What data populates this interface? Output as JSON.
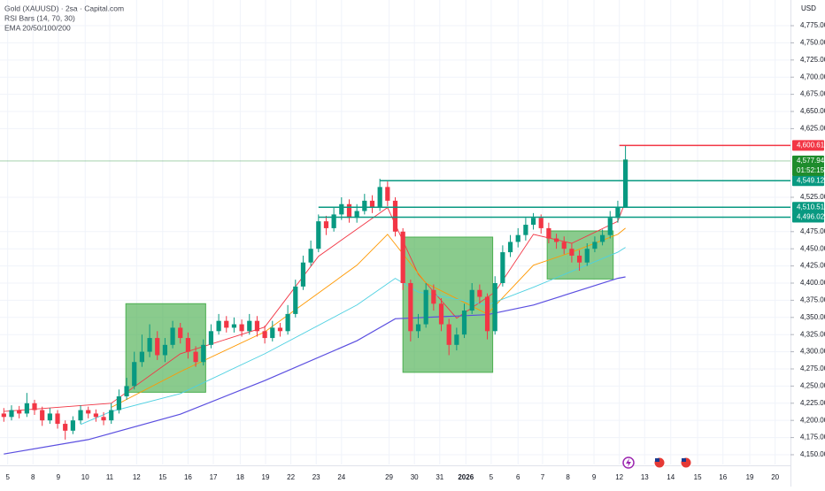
{
  "chart_data": {
    "type": "candlestick",
    "title": "Gold (XAUUSD) · 2sa · Capital.com",
    "indicators": [
      "RSI Bars (14, 70, 30)",
      "EMA 20/50/100/200"
    ],
    "currency": "USD",
    "up_color": "#089981",
    "down_color": "#f23645",
    "grid": true,
    "xlim": [
      -0.5,
      102.5
    ],
    "ylim": [
      4135.8,
      4812.4
    ],
    "xticks": [
      {
        "value": 0.5,
        "label": "5"
      },
      {
        "value": 3.8,
        "label": "8"
      },
      {
        "value": 7.1,
        "label": "9"
      },
      {
        "value": 10.6,
        "label": "10"
      },
      {
        "value": 13.8,
        "label": "11"
      },
      {
        "value": 17.3,
        "label": "12"
      },
      {
        "value": 20.7,
        "label": "15"
      },
      {
        "value": 24,
        "label": "16"
      },
      {
        "value": 27.3,
        "label": "17"
      },
      {
        "value": 30.8,
        "label": "18"
      },
      {
        "value": 34.1,
        "label": "19"
      },
      {
        "value": 37.4,
        "label": "22"
      },
      {
        "value": 40.7,
        "label": "23"
      },
      {
        "value": 44,
        "label": "24"
      },
      {
        "value": 50.2,
        "label": "29"
      },
      {
        "value": 53.5,
        "label": "30"
      },
      {
        "value": 56.8,
        "label": "31"
      },
      {
        "value": 60.2,
        "label": "2026"
      },
      {
        "value": 63.5,
        "label": "5"
      },
      {
        "value": 67,
        "label": "6"
      },
      {
        "value": 70.2,
        "label": "7"
      },
      {
        "value": 73.5,
        "label": "8"
      },
      {
        "value": 76.9,
        "label": "9"
      },
      {
        "value": 80.2,
        "label": "12"
      },
      {
        "value": 83.5,
        "label": "13"
      },
      {
        "value": 86.9,
        "label": "14"
      },
      {
        "value": 90.4,
        "label": "15"
      },
      {
        "value": 93.7,
        "label": "16"
      },
      {
        "value": 97.2,
        "label": "19"
      },
      {
        "value": 100.5,
        "label": "20"
      }
    ],
    "yticks": [
      {
        "value": 4775,
        "label": "4,775.00"
      },
      {
        "value": 4750,
        "label": "4,750.00"
      },
      {
        "value": 4725,
        "label": "4,725.00"
      },
      {
        "value": 4700,
        "label": "4,700.00"
      },
      {
        "value": 4675,
        "label": "4,675.00"
      },
      {
        "value": 4650,
        "label": "4,650.00"
      },
      {
        "value": 4625,
        "label": "4,625.00"
      },
      {
        "value": 4525,
        "label": "4,525.00"
      },
      {
        "value": 4475,
        "label": "4,475.00"
      },
      {
        "value": 4450,
        "label": "4,450.00"
      },
      {
        "value": 4425,
        "label": "4,425.00"
      },
      {
        "value": 4400,
        "label": "4,400.00"
      },
      {
        "value": 4375,
        "label": "4,375.00"
      },
      {
        "value": 4350,
        "label": "4,350.00"
      },
      {
        "value": 4325,
        "label": "4,325.00"
      },
      {
        "value": 4300,
        "label": "4,300.00"
      },
      {
        "value": 4275,
        "label": "4,275.00"
      },
      {
        "value": 4250,
        "label": "4,250.00"
      },
      {
        "value": 4225,
        "label": "4,225.00"
      },
      {
        "value": 4200,
        "label": "4,200.00"
      },
      {
        "value": 4175,
        "label": "4,175.00"
      },
      {
        "value": 4150,
        "label": "4,150.00"
      }
    ],
    "candles": {
      "open": [
        4210,
        4205,
        4215,
        4210,
        4225,
        4215,
        4200,
        4210,
        4195,
        4185,
        4200,
        4215,
        4210,
        4205,
        4200,
        4215,
        4235,
        4250,
        4285,
        4300,
        4320,
        4295,
        4310,
        4335,
        4320,
        4300,
        4285,
        4310,
        4330,
        4345,
        4335,
        4340,
        4330,
        4345,
        4330,
        4320,
        4335,
        4330,
        4355,
        4395,
        4430,
        4450,
        4490,
        4480,
        4500,
        4515,
        4495,
        4505,
        4520,
        4510,
        4540,
        4520,
        4475,
        4400,
        4330,
        4340,
        4390,
        4370,
        4340,
        4310,
        4325,
        4360,
        4390,
        4380,
        4330,
        4400,
        4445,
        4460,
        4470,
        4485,
        4495,
        4480,
        4465,
        4460,
        4450,
        4440,
        4430,
        4450,
        4460,
        4470,
        4495,
        4510
      ],
      "high": [
        4218,
        4222,
        4221,
        4240,
        4230,
        4220,
        4218,
        4215,
        4200,
        4206,
        4222,
        4220,
        4216,
        4212,
        4225,
        4245,
        4262,
        4300,
        4325,
        4340,
        4330,
        4320,
        4345,
        4342,
        4328,
        4308,
        4318,
        4340,
        4355,
        4352,
        4350,
        4347,
        4355,
        4352,
        4338,
        4345,
        4342,
        4368,
        4405,
        4440,
        4462,
        4500,
        4498,
        4510,
        4525,
        4522,
        4515,
        4530,
        4528,
        4552,
        4548,
        4525,
        4480,
        4405,
        4355,
        4400,
        4398,
        4378,
        4348,
        4335,
        4370,
        4400,
        4398,
        4385,
        4410,
        4455,
        4470,
        4480,
        4495,
        4502,
        4500,
        4488,
        4472,
        4468,
        4458,
        4448,
        4458,
        4468,
        4478,
        4505,
        4520,
        4600
      ],
      "low": [
        4198,
        4200,
        4203,
        4205,
        4208,
        4192,
        4195,
        4188,
        4172,
        4180,
        4195,
        4203,
        4198,
        4193,
        4195,
        4210,
        4230,
        4245,
        4278,
        4292,
        4288,
        4285,
        4305,
        4312,
        4290,
        4278,
        4280,
        4305,
        4325,
        4328,
        4328,
        4322,
        4325,
        4322,
        4312,
        4315,
        4322,
        4325,
        4350,
        4390,
        4425,
        4445,
        4470,
        4475,
        4492,
        4488,
        4488,
        4500,
        4502,
        4505,
        4512,
        4468,
        4390,
        4315,
        4320,
        4335,
        4360,
        4330,
        4295,
        4302,
        4320,
        4355,
        4370,
        4318,
        4325,
        4395,
        4438,
        4452,
        4462,
        4478,
        4472,
        4458,
        4450,
        4442,
        4430,
        4418,
        4425,
        4445,
        4455,
        4465,
        4488,
        4530
      ],
      "close": [
        4205,
        4215,
        4210,
        4225,
        4215,
        4200,
        4210,
        4195,
        4185,
        4200,
        4215,
        4210,
        4205,
        4200,
        4215,
        4235,
        4250,
        4285,
        4300,
        4320,
        4295,
        4310,
        4335,
        4320,
        4300,
        4285,
        4310,
        4330,
        4345,
        4335,
        4340,
        4330,
        4345,
        4330,
        4320,
        4335,
        4330,
        4355,
        4395,
        4430,
        4450,
        4490,
        4480,
        4500,
        4515,
        4495,
        4505,
        4520,
        4510,
        4540,
        4520,
        4475,
        4400,
        4330,
        4340,
        4390,
        4370,
        4340,
        4310,
        4325,
        4360,
        4390,
        4380,
        4330,
        4400,
        4445,
        4460,
        4470,
        4485,
        4495,
        4480,
        4465,
        4460,
        4450,
        4440,
        4430,
        4450,
        4460,
        4470,
        4495,
        4510,
        4580
      ]
    },
    "series": [
      {
        "color": "#f23645",
        "x": [
          0,
          14,
          23,
          34,
          41,
          50,
          54,
          59,
          64,
          69,
          74,
          80,
          81
        ],
        "values": [
          4213,
          4225,
          4297,
          4336,
          4439,
          4510,
          4413,
          4349,
          4387,
          4471,
          4458,
          4490,
          4519
        ]
      },
      {
        "color": "#ff9800",
        "x": [
          14,
          23,
          34,
          46,
          50,
          55,
          63,
          69,
          74,
          80,
          81
        ],
        "values": [
          4219,
          4271,
          4329,
          4426,
          4471,
          4400,
          4355,
          4426,
          4445,
          4471,
          4480
        ]
      },
      {
        "color": "#4dd0e1",
        "x": [
          10,
          14,
          23,
          34,
          46,
          51,
          54,
          63,
          69,
          80,
          81
        ],
        "values": [
          4194,
          4213,
          4239,
          4297,
          4368,
          4407,
          4387,
          4368,
          4394,
          4445,
          4452
        ]
      },
      {
        "color": "#5b4fe0",
        "x": [
          0,
          11,
          23,
          34,
          46,
          51,
          63,
          69,
          80,
          81
        ],
        "values": [
          4151,
          4172,
          4209,
          4258,
          4316,
          4348,
          4354,
          4368,
          4407,
          4409
        ]
      }
    ],
    "zones": [
      {
        "x0": 15.9,
        "x1": 26.3,
        "top": 4370,
        "bottom": 4241
      },
      {
        "x0": 52,
        "x1": 63.7,
        "top": 4467,
        "bottom": 4270
      },
      {
        "x0": 70.8,
        "x1": 79.4,
        "top": 4476,
        "bottom": 4406
      }
    ],
    "zone_color": "#4caf50",
    "levels": [
      {
        "value": 4600.61,
        "label": "4,600.61",
        "start": 80.2,
        "color": "#f23645"
      },
      {
        "value": 4549.12,
        "label": "4,549.12",
        "start": 49,
        "color": "#089981"
      },
      {
        "value": 4510.51,
        "label": "4,510.51",
        "start": 41,
        "color": "#089981"
      },
      {
        "value": 4496.02,
        "label": "4,496.02",
        "start": 41,
        "color": "#089981"
      }
    ],
    "last_price": {
      "value": 4577.94,
      "label": "4,577.94",
      "countdown": "01:52:15",
      "color": "#1e8c2c"
    }
  }
}
